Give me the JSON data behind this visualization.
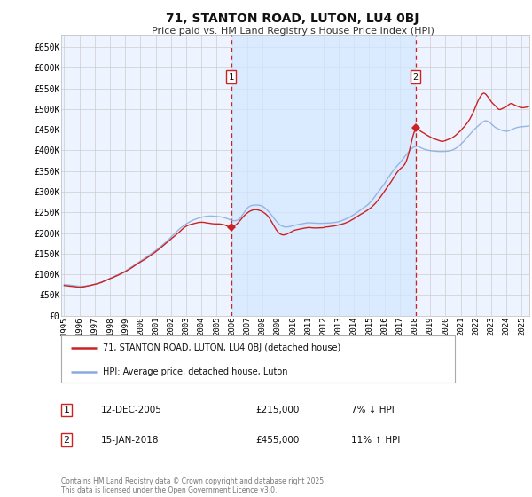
{
  "title": "71, STANTON ROAD, LUTON, LU4 0BJ",
  "subtitle": "Price paid vs. HM Land Registry's House Price Index (HPI)",
  "ylim": [
    0,
    680000
  ],
  "yticks": [
    0,
    50000,
    100000,
    150000,
    200000,
    250000,
    300000,
    350000,
    400000,
    450000,
    500000,
    550000,
    600000,
    650000
  ],
  "ytick_labels": [
    "£0",
    "£50K",
    "£100K",
    "£150K",
    "£200K",
    "£250K",
    "£300K",
    "£350K",
    "£400K",
    "£450K",
    "£500K",
    "£550K",
    "£600K",
    "£650K"
  ],
  "hpi_color": "#88aadd",
  "property_color": "#cc2222",
  "background_color": "#ffffff",
  "plot_bg_color": "#eef4ff",
  "grid_color": "#cccccc",
  "purchase1_year": 2005.95,
  "purchase1_price": 215000,
  "purchase2_year": 2018.04,
  "purchase2_price": 455000,
  "legend_line1": "71, STANTON ROAD, LUTON, LU4 0BJ (detached house)",
  "legend_line2": "HPI: Average price, detached house, Luton",
  "table_row1_num": "1",
  "table_row1_date": "12-DEC-2005",
  "table_row1_price": "£215,000",
  "table_row1_hpi": "7% ↓ HPI",
  "table_row2_num": "2",
  "table_row2_date": "15-JAN-2018",
  "table_row2_price": "£455,000",
  "table_row2_hpi": "11% ↑ HPI",
  "footer": "Contains HM Land Registry data © Crown copyright and database right 2025.\nThis data is licensed under the Open Government Licence v3.0.",
  "x_start": 1995.0,
  "x_end": 2025.5,
  "xtick_years": [
    1995,
    1996,
    1997,
    1998,
    1999,
    2000,
    2001,
    2002,
    2003,
    2004,
    2005,
    2006,
    2007,
    2008,
    2009,
    2010,
    2011,
    2012,
    2013,
    2014,
    2015,
    2016,
    2017,
    2018,
    2019,
    2020,
    2021,
    2022,
    2023,
    2024,
    2025
  ],
  "xtick_labels": [
    "1995",
    "1996",
    "1997",
    "1998",
    "1999",
    "2000",
    "2001",
    "2002",
    "2003",
    "2004",
    "2005",
    "2006",
    "2007",
    "2008",
    "2009",
    "2010",
    "2011",
    "2012",
    "2013",
    "2014",
    "2015",
    "2016",
    "2017",
    "2018",
    "2019",
    "2020",
    "2021",
    "2022",
    "2023",
    "2024",
    "2025"
  ],
  "hpi_anchors_x": [
    1995.0,
    1995.5,
    1996.0,
    1996.5,
    1997.0,
    1997.5,
    1998.0,
    1998.5,
    1999.0,
    1999.5,
    2000.0,
    2000.5,
    2001.0,
    2001.5,
    2002.0,
    2002.5,
    2003.0,
    2003.5,
    2004.0,
    2004.5,
    2005.0,
    2005.5,
    2005.95,
    2006.5,
    2007.0,
    2007.5,
    2008.0,
    2008.5,
    2009.0,
    2009.5,
    2010.0,
    2010.5,
    2011.0,
    2011.5,
    2012.0,
    2012.5,
    2013.0,
    2013.5,
    2014.0,
    2014.5,
    2015.0,
    2015.5,
    2016.0,
    2016.5,
    2017.0,
    2017.5,
    2018.04,
    2018.5,
    2019.0,
    2019.5,
    2020.0,
    2020.5,
    2021.0,
    2021.5,
    2022.0,
    2022.3,
    2022.6,
    2022.9,
    2023.2,
    2023.5,
    2023.8,
    2024.0,
    2024.3,
    2024.6,
    2025.0,
    2025.5
  ],
  "hpi_anchors_y": [
    75000,
    73000,
    71000,
    72000,
    76000,
    82000,
    90000,
    99000,
    108000,
    120000,
    132000,
    145000,
    158000,
    173000,
    190000,
    208000,
    222000,
    232000,
    238000,
    241000,
    240000,
    237000,
    231000,
    235000,
    260000,
    268000,
    265000,
    248000,
    225000,
    215000,
    218000,
    222000,
    225000,
    224000,
    224000,
    225000,
    228000,
    235000,
    245000,
    258000,
    272000,
    295000,
    320000,
    348000,
    370000,
    393000,
    410000,
    405000,
    400000,
    398000,
    398000,
    402000,
    415000,
    435000,
    455000,
    465000,
    472000,
    468000,
    458000,
    452000,
    448000,
    447000,
    450000,
    455000,
    458000,
    460000
  ],
  "prop_anchors_x": [
    1995.0,
    1995.5,
    1996.0,
    1996.5,
    1997.0,
    1997.5,
    1998.0,
    1998.5,
    1999.0,
    1999.5,
    2000.0,
    2000.5,
    2001.0,
    2001.5,
    2002.0,
    2002.5,
    2003.0,
    2003.5,
    2004.0,
    2004.5,
    2005.0,
    2005.5,
    2005.95,
    2006.5,
    2007.0,
    2007.5,
    2008.0,
    2008.5,
    2009.0,
    2009.5,
    2010.0,
    2010.5,
    2011.0,
    2011.5,
    2012.0,
    2012.5,
    2013.0,
    2013.5,
    2014.0,
    2014.5,
    2015.0,
    2015.5,
    2016.0,
    2016.5,
    2017.0,
    2017.5,
    2018.04,
    2018.3,
    2018.6,
    2018.9,
    2019.2,
    2019.5,
    2019.8,
    2020.1,
    2020.4,
    2020.7,
    2021.0,
    2021.3,
    2021.6,
    2021.9,
    2022.1,
    2022.3,
    2022.5,
    2022.7,
    2022.9,
    2023.1,
    2023.3,
    2023.5,
    2023.7,
    2023.9,
    2024.1,
    2024.3,
    2024.5,
    2024.7,
    2025.0,
    2025.5
  ],
  "prop_anchors_y": [
    73000,
    70000,
    68000,
    70000,
    74000,
    80000,
    88000,
    96000,
    105000,
    116000,
    128000,
    140000,
    153000,
    168000,
    184000,
    200000,
    215000,
    222000,
    226000,
    224000,
    222000,
    220000,
    215000,
    230000,
    250000,
    258000,
    253000,
    235000,
    205000,
    198000,
    207000,
    212000,
    215000,
    214000,
    215000,
    218000,
    222000,
    228000,
    238000,
    250000,
    262000,
    280000,
    305000,
    332000,
    358000,
    385000,
    455000,
    452000,
    445000,
    438000,
    432000,
    428000,
    425000,
    428000,
    432000,
    440000,
    450000,
    462000,
    478000,
    500000,
    518000,
    532000,
    540000,
    535000,
    525000,
    515000,
    508000,
    500000,
    502000,
    505000,
    510000,
    515000,
    512000,
    508000,
    505000,
    508000
  ]
}
